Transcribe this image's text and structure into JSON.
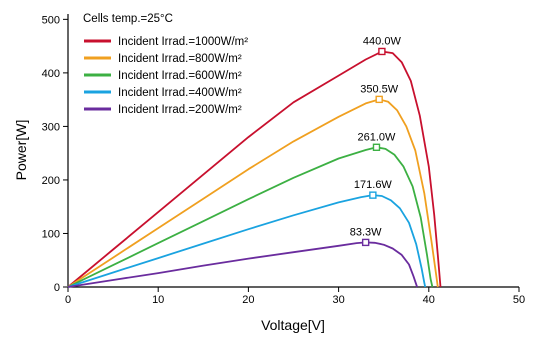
{
  "chart_data": {
    "type": "line",
    "title": "",
    "xlabel": "Voltage[V]",
    "ylabel": "Power[W]",
    "xlim": [
      0,
      50
    ],
    "ylim": [
      0,
      510
    ],
    "x_ticks": [
      0,
      10,
      20,
      30,
      40,
      50
    ],
    "y_ticks": [
      0,
      100,
      200,
      300,
      400,
      500
    ],
    "grid": false,
    "legend_position": "top-left",
    "annotation": "Cells temp.=25°C",
    "series": [
      {
        "name": "Incident Irrad.=1000W/m²",
        "color": "#c8102e",
        "peak": {
          "x": 34.8,
          "y": 440.0,
          "label": "440.0W"
        },
        "points": [
          [
            0,
            0
          ],
          [
            5,
            70
          ],
          [
            10,
            140
          ],
          [
            15,
            210
          ],
          [
            20,
            280
          ],
          [
            25,
            345
          ],
          [
            30,
            395
          ],
          [
            33,
            425
          ],
          [
            34.8,
            440
          ],
          [
            36,
            437
          ],
          [
            37,
            420
          ],
          [
            38,
            385
          ],
          [
            39,
            320
          ],
          [
            40,
            225
          ],
          [
            40.6,
            135
          ],
          [
            41.0,
            60
          ],
          [
            41.3,
            0
          ]
        ]
      },
      {
        "name": "Incident Irrad.=800W/m²",
        "color": "#f0a020",
        "peak": {
          "x": 34.5,
          "y": 350.5,
          "label": "350.5W"
        },
        "points": [
          [
            0,
            0
          ],
          [
            5,
            55
          ],
          [
            10,
            110
          ],
          [
            15,
            165
          ],
          [
            20,
            220
          ],
          [
            25,
            272
          ],
          [
            30,
            318
          ],
          [
            33,
            343
          ],
          [
            34.5,
            350.5
          ],
          [
            35.5,
            346
          ],
          [
            36.5,
            330
          ],
          [
            37.5,
            300
          ],
          [
            38.5,
            255
          ],
          [
            39.5,
            175
          ],
          [
            40.3,
            85
          ],
          [
            40.8,
            25
          ],
          [
            41.0,
            0
          ]
        ]
      },
      {
        "name": "Incident Irrad.=600W/m²",
        "color": "#3cb043",
        "peak": {
          "x": 34.2,
          "y": 261.0,
          "label": "261.0W"
        },
        "points": [
          [
            0,
            0
          ],
          [
            5,
            41
          ],
          [
            10,
            82
          ],
          [
            15,
            123
          ],
          [
            20,
            164
          ],
          [
            25,
            204
          ],
          [
            30,
            240
          ],
          [
            33,
            256
          ],
          [
            34.2,
            261
          ],
          [
            35.2,
            258
          ],
          [
            36.2,
            247
          ],
          [
            37.2,
            225
          ],
          [
            38.2,
            188
          ],
          [
            39.1,
            130
          ],
          [
            39.8,
            60
          ],
          [
            40.2,
            15
          ],
          [
            40.4,
            0
          ]
        ]
      },
      {
        "name": "Incident Irrad.=400W/m²",
        "color": "#1aa3e0",
        "peak": {
          "x": 33.8,
          "y": 171.6,
          "label": "171.6W"
        },
        "points": [
          [
            0,
            0
          ],
          [
            5,
            27
          ],
          [
            10,
            54
          ],
          [
            15,
            81
          ],
          [
            20,
            108
          ],
          [
            25,
            134
          ],
          [
            30,
            158
          ],
          [
            32.5,
            168
          ],
          [
            33.8,
            171.6
          ],
          [
            34.8,
            170
          ],
          [
            35.8,
            162
          ],
          [
            36.8,
            147
          ],
          [
            37.8,
            120
          ],
          [
            38.6,
            80
          ],
          [
            39.2,
            35
          ],
          [
            39.5,
            8
          ],
          [
            39.6,
            0
          ]
        ]
      },
      {
        "name": "Incident Irrad.=200W/m²",
        "color": "#6a2c9e",
        "peak": {
          "x": 33.0,
          "y": 83.3,
          "label": "83.3W"
        },
        "points": [
          [
            0,
            0
          ],
          [
            5,
            13
          ],
          [
            10,
            26
          ],
          [
            15,
            40
          ],
          [
            20,
            53
          ],
          [
            25,
            65
          ],
          [
            30,
            77
          ],
          [
            32,
            82
          ],
          [
            33,
            83.3
          ],
          [
            34,
            82.5
          ],
          [
            35,
            79
          ],
          [
            36,
            72
          ],
          [
            37,
            60
          ],
          [
            37.8,
            42
          ],
          [
            38.3,
            20
          ],
          [
            38.6,
            5
          ],
          [
            38.7,
            0
          ]
        ]
      }
    ]
  }
}
